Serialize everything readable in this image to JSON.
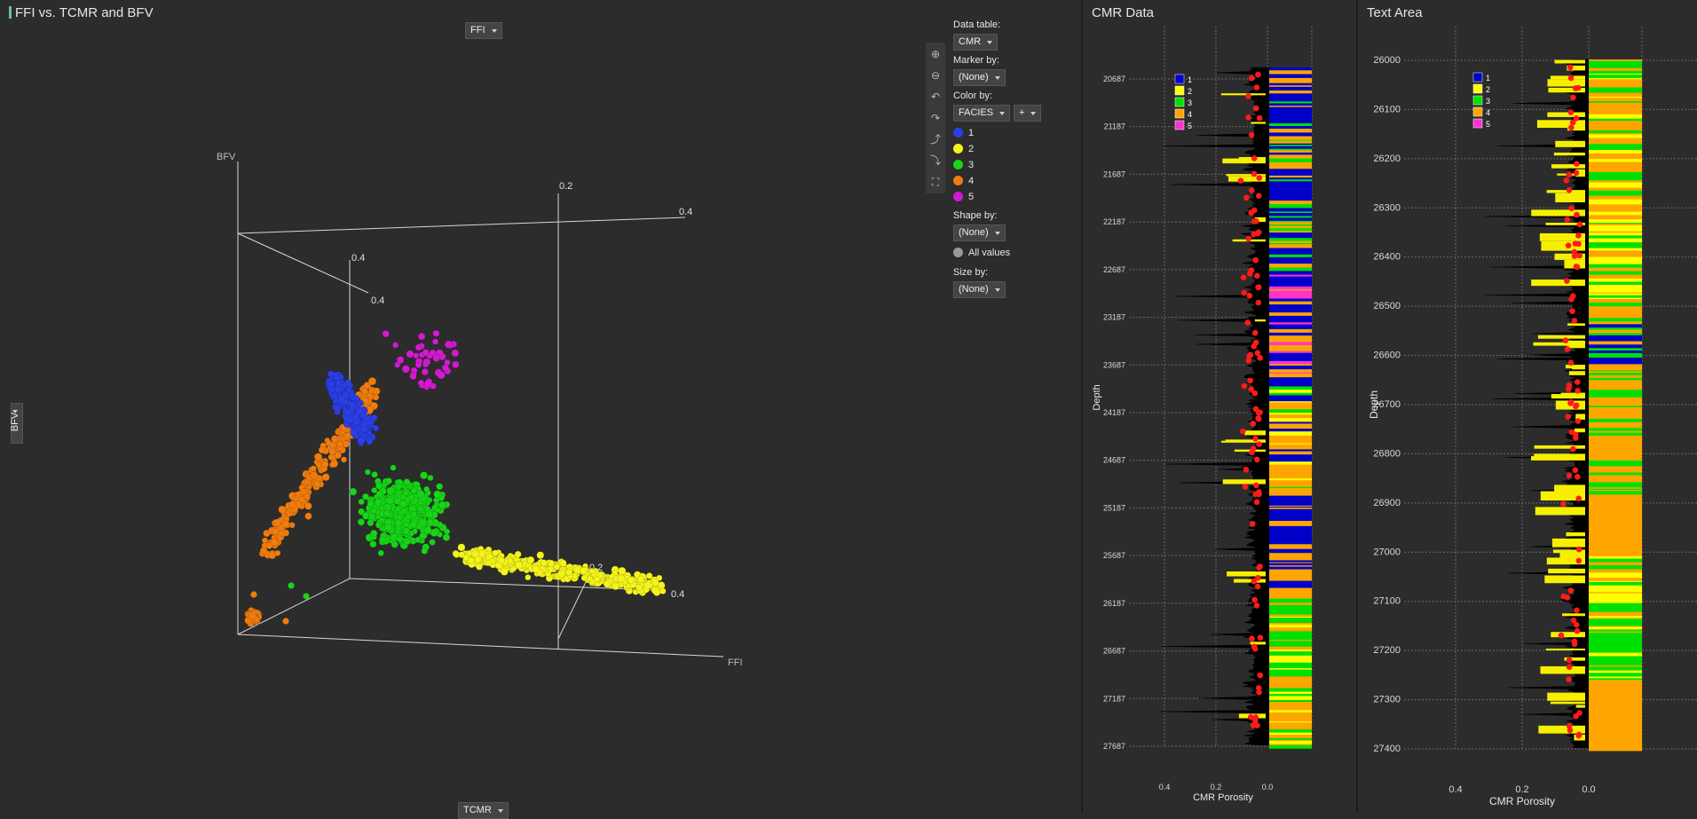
{
  "plot3d": {
    "title": "FFI vs. TCMR and BFV",
    "top_selector": "FFI",
    "left_selector": "BFV",
    "bottom_selector": "TCMR",
    "controls": {
      "data_table_label": "Data table:",
      "data_table_value": "CMR",
      "marker_by_label": "Marker by:",
      "marker_by_value": "(None)",
      "color_by_label": "Color by:",
      "color_by_value": "FACIES",
      "color_by_add": "+",
      "shape_by_label": "Shape by:",
      "shape_by_value": "(None)",
      "all_values_label": "All values",
      "size_by_label": "Size by:",
      "size_by_value": "(None)"
    },
    "legend": [
      {
        "label": "1",
        "color": "#2b3fe6"
      },
      {
        "label": "2",
        "color": "#f4f41c"
      },
      {
        "label": "3",
        "color": "#17d417"
      },
      {
        "label": "4",
        "color": "#f07c0f"
      },
      {
        "label": "5",
        "color": "#d21ad2"
      }
    ],
    "tools": [
      "zoom-in-icon",
      "zoom-out-icon",
      "rotate-left-icon",
      "rotate-right-icon",
      "tilt-up-icon",
      "tilt-down-icon",
      "fit-icon"
    ]
  },
  "chart_data": [
    {
      "type": "scatter",
      "title": "FFI vs. TCMR and BFV",
      "xlabel": "FFI",
      "ylabel": "BFV",
      "zlabel": "TCMR",
      "tick_labels": {
        "top_back": "0.2",
        "top_right": "0.4",
        "inner_top": "0.4",
        "inner_side": "0.4",
        "floor_mid": "0.2",
        "floor_right": "0.4"
      },
      "series": [
        {
          "name": "1",
          "color": "#2b3fe6",
          "approx_points": 900
        },
        {
          "name": "2",
          "color": "#f4f41c",
          "approx_points": 700
        },
        {
          "name": "3",
          "color": "#17d417",
          "approx_points": 800
        },
        {
          "name": "4",
          "color": "#f07c0f",
          "approx_points": 600
        },
        {
          "name": "5",
          "color": "#d21ad2",
          "approx_points": 60
        }
      ]
    },
    {
      "type": "line",
      "title": "CMR Data",
      "xlabel": "CMR Porosity",
      "ylabel": "Depth",
      "x_ticks": [
        "0.4",
        "0.2",
        "0.0"
      ],
      "y_ticks": [
        "20687",
        "21187",
        "21687",
        "22187",
        "22687",
        "23187",
        "23687",
        "24187",
        "24687",
        "25187",
        "25687",
        "26187",
        "26687",
        "27187",
        "27687"
      ],
      "ylim": [
        20600,
        27700
      ],
      "legend": [
        "1",
        "2",
        "3",
        "4",
        "5"
      ]
    },
    {
      "type": "line",
      "title": "Text Area",
      "xlabel": "CMR Porosity",
      "ylabel": "Depth",
      "x_ticks": [
        "0.4",
        "0.2",
        "0.0"
      ],
      "y_ticks": [
        "26000",
        "26100",
        "26200",
        "26300",
        "26400",
        "26500",
        "26600",
        "26700",
        "26800",
        "26900",
        "27000",
        "27100",
        "27200",
        "27300",
        "27400"
      ],
      "ylim": [
        26000,
        27400
      ],
      "legend": [
        "1",
        "2",
        "3",
        "4",
        "5"
      ]
    }
  ],
  "facies_colors": {
    "1": "#0000c8",
    "2": "#ffff00",
    "3": "#00e000",
    "4": "#ffa500",
    "5": "#ff33cc"
  },
  "cmr": {
    "title": "CMR Data"
  },
  "textarea": {
    "title": "Text Area"
  }
}
